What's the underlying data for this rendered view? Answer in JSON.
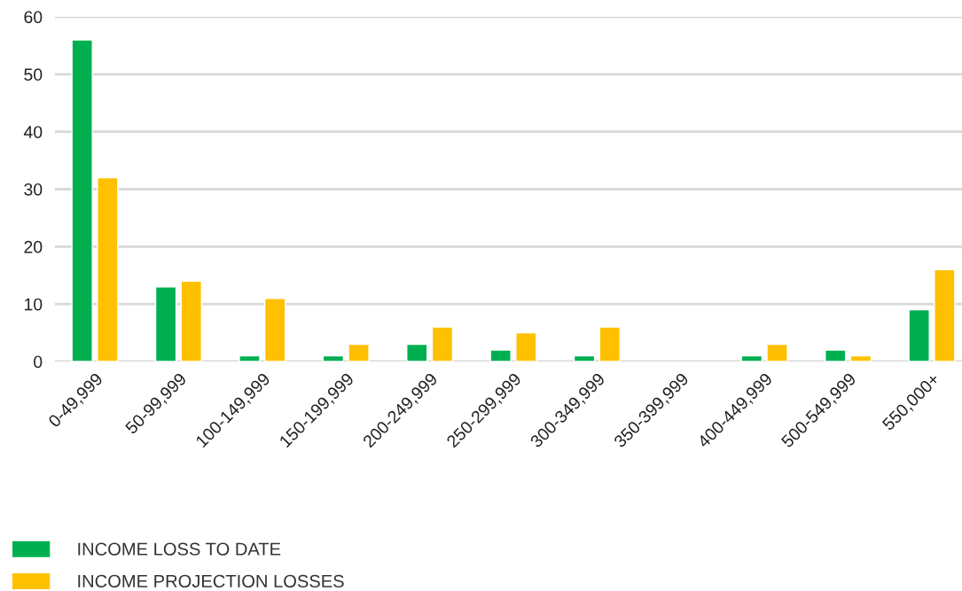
{
  "chart_data": {
    "type": "bar",
    "categories": [
      "0-49,999",
      "50-99,999",
      "100-149,999",
      "150-199,999",
      "200-249,999",
      "250-299,999",
      "300-349,999",
      "350-399,999",
      "400-449,999",
      "500-549,999",
      "550,000+"
    ],
    "series": [
      {
        "name": "INCOME LOSS TO DATE",
        "color": "#00b050",
        "values": [
          56,
          13,
          1,
          1,
          3,
          2,
          1,
          null,
          1,
          2,
          9
        ]
      },
      {
        "name": "INCOME PROJECTION LOSSES",
        "color": "#ffc000",
        "values": [
          32,
          14,
          11,
          3,
          6,
          5,
          6,
          null,
          3,
          1,
          16
        ]
      }
    ],
    "ylim": [
      0,
      60
    ],
    "yticks": [
      0,
      10,
      20,
      30,
      40,
      50,
      60
    ],
    "grid": "y",
    "legend": "bottom left"
  }
}
